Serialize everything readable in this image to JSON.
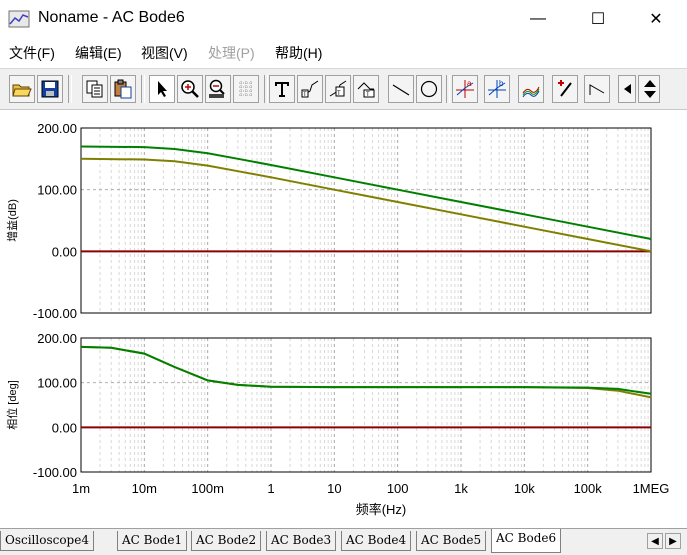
{
  "window": {
    "title": "Noname - AC Bode6",
    "minimize": "—",
    "maximize": "☐",
    "close": "✕"
  },
  "menu": [
    {
      "label": "文件(F)",
      "enabled": true
    },
    {
      "label": "编辑(E)",
      "enabled": true
    },
    {
      "label": "视图(V)",
      "enabled": true
    },
    {
      "label": "处理(P)",
      "enabled": false
    },
    {
      "label": "帮助(H)",
      "enabled": true
    }
  ],
  "toolbar": [
    {
      "name": "open-icon"
    },
    {
      "name": "save-icon"
    },
    {
      "name": "copy-icon"
    },
    {
      "name": "paste-icon"
    },
    {
      "name": "pointer-icon"
    },
    {
      "name": "zoom-in-icon"
    },
    {
      "name": "zoom-100-icon"
    },
    {
      "name": "grid-icon"
    },
    {
      "name": "text-icon"
    },
    {
      "name": "annotate-1-icon"
    },
    {
      "name": "annotate-2-icon"
    },
    {
      "name": "annotate-3-icon"
    },
    {
      "name": "line-icon"
    },
    {
      "name": "circle-icon"
    },
    {
      "name": "cursor-a-icon"
    },
    {
      "name": "cursor-b-icon"
    },
    {
      "name": "traces-icon"
    },
    {
      "name": "probe-icon"
    },
    {
      "name": "corner-icon"
    },
    {
      "name": "arrow-left-icon"
    },
    {
      "name": "arrow-updown-icon"
    }
  ],
  "tabs": [
    {
      "label": "Oscilloscope4",
      "active": false
    },
    {
      "label": "AC Bode1",
      "active": false
    },
    {
      "label": "AC Bode2",
      "active": false
    },
    {
      "label": "AC Bode3",
      "active": false
    },
    {
      "label": "AC Bode4",
      "active": false
    },
    {
      "label": "AC Bode5",
      "active": false
    },
    {
      "label": "AC Bode6",
      "active": true
    }
  ],
  "colors": {
    "zero_line": "#8b0000",
    "series_a": "#008000",
    "series_b": "#808000"
  },
  "chart_data": [
    {
      "type": "line",
      "ylabel": "增益(dB)",
      "xlabel": "频率(Hz)",
      "x_scale": "log",
      "x_ticks": [
        "1m",
        "10m",
        "100m",
        "1",
        "10",
        "100",
        "1k",
        "10k",
        "100k",
        "1MEG"
      ],
      "x_tick_values": [
        0.001,
        0.01,
        0.1,
        1,
        10,
        100,
        1000,
        10000,
        100000,
        1000000
      ],
      "ylim": [
        -100,
        200
      ],
      "y_ticks": [
        "200.00",
        "100.00",
        "0.00",
        "-100.00"
      ],
      "y_tick_values": [
        200,
        100,
        0,
        -100
      ],
      "zero_line": 0,
      "series": [
        {
          "color": "#008000",
          "x": [
            0.001,
            0.01,
            0.03,
            0.1,
            0.3,
            1,
            10,
            100,
            1000,
            10000,
            100000,
            1000000
          ],
          "y": [
            170,
            169,
            166,
            159,
            150,
            140,
            120,
            100,
            80,
            60,
            40,
            20
          ]
        },
        {
          "color": "#808000",
          "x": [
            0.001,
            0.01,
            0.03,
            0.1,
            0.3,
            1,
            10,
            100,
            1000,
            10000,
            100000,
            1000000
          ],
          "y": [
            150,
            149,
            146,
            139,
            130,
            120,
            100,
            80,
            60,
            40,
            20,
            0
          ]
        }
      ]
    },
    {
      "type": "line",
      "ylabel": "相位 [deg]",
      "xlabel": "频率(Hz)",
      "x_scale": "log",
      "x_ticks": [
        "1m",
        "10m",
        "100m",
        "1",
        "10",
        "100",
        "1k",
        "10k",
        "100k",
        "1MEG"
      ],
      "x_tick_values": [
        0.001,
        0.01,
        0.1,
        1,
        10,
        100,
        1000,
        10000,
        100000,
        1000000
      ],
      "ylim": [
        -100,
        200
      ],
      "y_ticks": [
        "200.00",
        "100.00",
        "0.00",
        "-100.00"
      ],
      "y_tick_values": [
        200,
        100,
        0,
        -100
      ],
      "zero_line": 0,
      "series": [
        {
          "color": "#808000",
          "x": [
            0.001,
            0.003,
            0.01,
            0.03,
            0.1,
            0.3,
            1,
            10,
            100,
            1000,
            10000,
            100000,
            300000,
            1000000
          ],
          "y": [
            180,
            178,
            165,
            135,
            105,
            95,
            91,
            90,
            90,
            90,
            90,
            88,
            82,
            67
          ]
        },
        {
          "color": "#008000",
          "x": [
            0.001,
            0.003,
            0.01,
            0.03,
            0.1,
            0.3,
            1,
            10,
            100,
            1000,
            10000,
            100000,
            300000,
            1000000
          ],
          "y": [
            180,
            178,
            165,
            135,
            105,
            95,
            91,
            90,
            90,
            90,
            90,
            89,
            86,
            75
          ]
        }
      ]
    }
  ]
}
